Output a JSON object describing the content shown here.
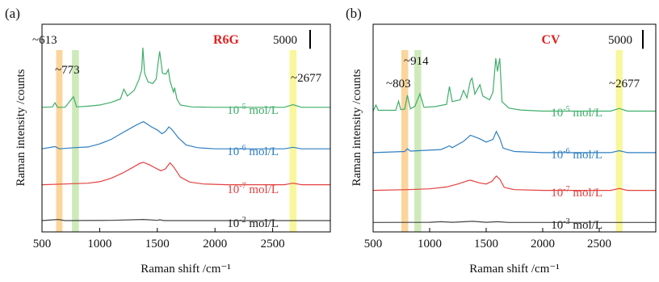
{
  "chart_data": [
    {
      "panel_label": "(a)",
      "type": "line",
      "sample_label": "R6G",
      "xlabel": "Raman shift /cm⁻¹",
      "ylabel": "Raman intensity /counts",
      "xlim": [
        500,
        3000
      ],
      "x_ticks": [
        500,
        1000,
        1500,
        2000,
        2500
      ],
      "scale_bar_label": "5000",
      "scale_bar_counts": 5000,
      "highlights": [
        {
          "label": "~613",
          "center": 650,
          "width": 55,
          "color": "#f9c77a"
        },
        {
          "label": "~773",
          "center": 790,
          "width": 60,
          "color": "#bde3a3"
        },
        {
          "label": "~2677",
          "center": 2677,
          "width": 60,
          "color": "#f4f47a"
        }
      ],
      "series": [
        {
          "name": "10⁻⁵ mol/L",
          "color": "#3fae6a",
          "baseline": 32000,
          "points": [
            [
              500,
              32000
            ],
            [
              590,
              32100
            ],
            [
              613,
              33200
            ],
            [
              635,
              32000
            ],
            [
              700,
              32000
            ],
            [
              773,
              34800
            ],
            [
              800,
              32100
            ],
            [
              900,
              32300
            ],
            [
              1000,
              32600
            ],
            [
              1100,
              33300
            ],
            [
              1180,
              34200
            ],
            [
              1210,
              36800
            ],
            [
              1240,
              35000
            ],
            [
              1300,
              36500
            ],
            [
              1340,
              39300
            ],
            [
              1365,
              42000
            ],
            [
              1375,
              47800
            ],
            [
              1390,
              41000
            ],
            [
              1420,
              38700
            ],
            [
              1460,
              38300
            ],
            [
              1490,
              39500
            ],
            [
              1508,
              44000
            ],
            [
              1520,
              46800
            ],
            [
              1545,
              41000
            ],
            [
              1575,
              40800
            ],
            [
              1595,
              42000
            ],
            [
              1610,
              39000
            ],
            [
              1640,
              36000
            ],
            [
              1650,
              37200
            ],
            [
              1670,
              34200
            ],
            [
              1700,
              32600
            ],
            [
              1800,
              32100
            ],
            [
              2000,
              32000
            ],
            [
              2600,
              32000
            ],
            [
              2677,
              32700
            ],
            [
              2750,
              32000
            ],
            [
              3000,
              32000
            ]
          ]
        },
        {
          "name": "10⁻⁶ mol/L",
          "color": "#2f7fc1",
          "baseline": 21000,
          "points": [
            [
              500,
              21000
            ],
            [
              613,
              21600
            ],
            [
              650,
              21000
            ],
            [
              773,
              21300
            ],
            [
              900,
              21500
            ],
            [
              1000,
              22300
            ],
            [
              1100,
              23500
            ],
            [
              1200,
              25300
            ],
            [
              1300,
              27000
            ],
            [
              1350,
              27800
            ],
            [
              1380,
              28200
            ],
            [
              1420,
              27400
            ],
            [
              1450,
              26800
            ],
            [
              1500,
              26000
            ],
            [
              1540,
              25000
            ],
            [
              1570,
              25600
            ],
            [
              1600,
              26800
            ],
            [
              1630,
              26000
            ],
            [
              1680,
              24000
            ],
            [
              1750,
              22000
            ],
            [
              1850,
              21300
            ],
            [
              2000,
              21000
            ],
            [
              2600,
              21000
            ],
            [
              2677,
              21400
            ],
            [
              2750,
              21000
            ],
            [
              3000,
              21000
            ]
          ]
        },
        {
          "name": "10⁻⁷ mol/L",
          "color": "#e2413f",
          "baseline": 11500,
          "points": [
            [
              500,
              11500
            ],
            [
              700,
              11700
            ],
            [
              900,
              11900
            ],
            [
              1000,
              12300
            ],
            [
              1100,
              13200
            ],
            [
              1200,
              14600
            ],
            [
              1300,
              16300
            ],
            [
              1350,
              17200
            ],
            [
              1380,
              17400
            ],
            [
              1430,
              16800
            ],
            [
              1480,
              16000
            ],
            [
              1530,
              15200
            ],
            [
              1570,
              15700
            ],
            [
              1610,
              17300
            ],
            [
              1640,
              16300
            ],
            [
              1700,
              13500
            ],
            [
              1780,
              12200
            ],
            [
              1900,
              11700
            ],
            [
              2100,
              11500
            ],
            [
              2600,
              11500
            ],
            [
              2677,
              11900
            ],
            [
              2750,
              11500
            ],
            [
              3000,
              11500
            ]
          ]
        },
        {
          "name": "10⁻² mol/L",
          "color": "#444444",
          "baseline": 2000,
          "points": [
            [
              500,
              2000
            ],
            [
              640,
              2300
            ],
            [
              700,
              2000
            ],
            [
              1100,
              2050
            ],
            [
              1380,
              2300
            ],
            [
              1500,
              2050
            ],
            [
              1520,
              2200
            ],
            [
              1560,
              2000
            ],
            [
              1800,
              2000
            ],
            [
              3000,
              2000
            ]
          ]
        }
      ]
    },
    {
      "panel_label": "(b)",
      "type": "line",
      "sample_label": "CV",
      "xlabel": "Raman shift /cm⁻¹",
      "ylabel": "Raman intensity /counts",
      "xlim": [
        500,
        3000
      ],
      "x_ticks": [
        500,
        1000,
        1500,
        2000,
        2500
      ],
      "scale_bar_label": "5000",
      "scale_bar_counts": 5000,
      "highlights": [
        {
          "label": "~803",
          "center": 780,
          "width": 60,
          "color": "#f9c77a"
        },
        {
          "label": "~914",
          "center": 895,
          "width": 60,
          "color": "#bde3a3"
        },
        {
          "label": "~2677",
          "center": 2677,
          "width": 60,
          "color": "#f4f47a"
        }
      ],
      "series": [
        {
          "name": "10⁻⁵ mol/L",
          "color": "#3fae6a",
          "baseline": 31000,
          "points": [
            [
              500,
              31000
            ],
            [
              525,
              32600
            ],
            [
              545,
              31200
            ],
            [
              700,
              31200
            ],
            [
              725,
              33600
            ],
            [
              745,
              31400
            ],
            [
              780,
              31500
            ],
            [
              803,
              35200
            ],
            [
              830,
              31600
            ],
            [
              870,
              32300
            ],
            [
              914,
              35600
            ],
            [
              950,
              32000
            ],
            [
              1050,
              32200
            ],
            [
              1150,
              32800
            ],
            [
              1175,
              37500
            ],
            [
              1200,
              33500
            ],
            [
              1270,
              34000
            ],
            [
              1300,
              36500
            ],
            [
              1330,
              34500
            ],
            [
              1360,
              39000
            ],
            [
              1375,
              39700
            ],
            [
              1400,
              35500
            ],
            [
              1445,
              38000
            ],
            [
              1470,
              35000
            ],
            [
              1530,
              34000
            ],
            [
              1560,
              36000
            ],
            [
              1585,
              45000
            ],
            [
              1600,
              41500
            ],
            [
              1620,
              45000
            ],
            [
              1640,
              33500
            ],
            [
              1700,
              31800
            ],
            [
              1800,
              31300
            ],
            [
              2000,
              31000
            ],
            [
              2600,
              31000
            ],
            [
              2677,
              31700
            ],
            [
              2750,
              31000
            ],
            [
              3000,
              31000
            ]
          ]
        },
        {
          "name": "10⁻⁶ mol/L",
          "color": "#2f7fc1",
          "baseline": 20000,
          "points": [
            [
              500,
              20000
            ],
            [
              780,
              20300
            ],
            [
              803,
              21000
            ],
            [
              830,
              20400
            ],
            [
              900,
              20500
            ],
            [
              1100,
              20800
            ],
            [
              1175,
              21800
            ],
            [
              1200,
              21300
            ],
            [
              1300,
              23000
            ],
            [
              1360,
              24600
            ],
            [
              1380,
              24400
            ],
            [
              1440,
              23700
            ],
            [
              1500,
              22800
            ],
            [
              1560,
              23500
            ],
            [
              1590,
              25600
            ],
            [
              1620,
              23800
            ],
            [
              1650,
              21200
            ],
            [
              1750,
              20300
            ],
            [
              2000,
              20000
            ],
            [
              2600,
              20000
            ],
            [
              2677,
              20500
            ],
            [
              2750,
              20000
            ],
            [
              3000,
              20000
            ]
          ]
        },
        {
          "name": "10⁻⁷ mol/L",
          "color": "#e2413f",
          "baseline": 10000,
          "points": [
            [
              500,
              10000
            ],
            [
              800,
              10200
            ],
            [
              1000,
              10400
            ],
            [
              1150,
              10900
            ],
            [
              1250,
              11700
            ],
            [
              1330,
              12500
            ],
            [
              1360,
              12700
            ],
            [
              1440,
              12000
            ],
            [
              1500,
              11700
            ],
            [
              1550,
              12400
            ],
            [
              1590,
              13800
            ],
            [
              1620,
              13000
            ],
            [
              1660,
              10800
            ],
            [
              1750,
              10200
            ],
            [
              2000,
              10000
            ],
            [
              2600,
              10000
            ],
            [
              2677,
              10500
            ],
            [
              2750,
              10000
            ],
            [
              3000,
              10000
            ]
          ]
        },
        {
          "name": "10⁻³ mol/L",
          "color": "#444444",
          "baseline": 1500,
          "points": [
            [
              500,
              1500
            ],
            [
              1000,
              1550
            ],
            [
              1100,
              1700
            ],
            [
              1200,
              1550
            ],
            [
              1380,
              1800
            ],
            [
              1500,
              1550
            ],
            [
              1600,
              1700
            ],
            [
              1700,
              1500
            ],
            [
              3000,
              1500
            ]
          ]
        }
      ]
    }
  ]
}
